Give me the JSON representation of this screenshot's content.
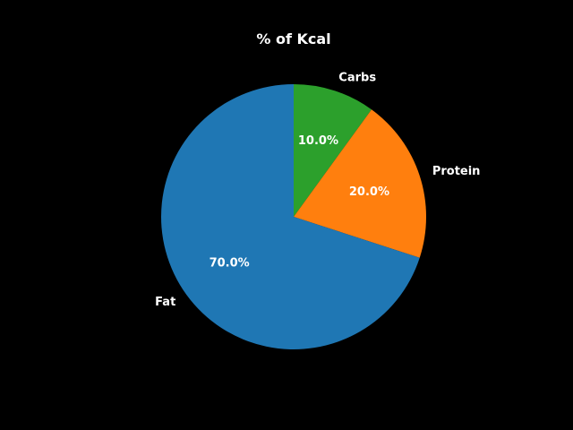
{
  "chart_data": {
    "type": "pie",
    "title": "% of Kcal",
    "slices": [
      {
        "label": "Carbs",
        "value": 10.0,
        "pct_label": "10.0%",
        "color": "#2ca02c"
      },
      {
        "label": "Protein",
        "value": 20.0,
        "pct_label": "20.0%",
        "color": "#ff7f0e"
      },
      {
        "label": "Fat",
        "value": 70.0,
        "pct_label": "70.0%",
        "color": "#1f77b4"
      }
    ],
    "start_angle_deg": 90,
    "direction": "clockwise",
    "background": "#000000",
    "text_color": "#ffffff"
  }
}
